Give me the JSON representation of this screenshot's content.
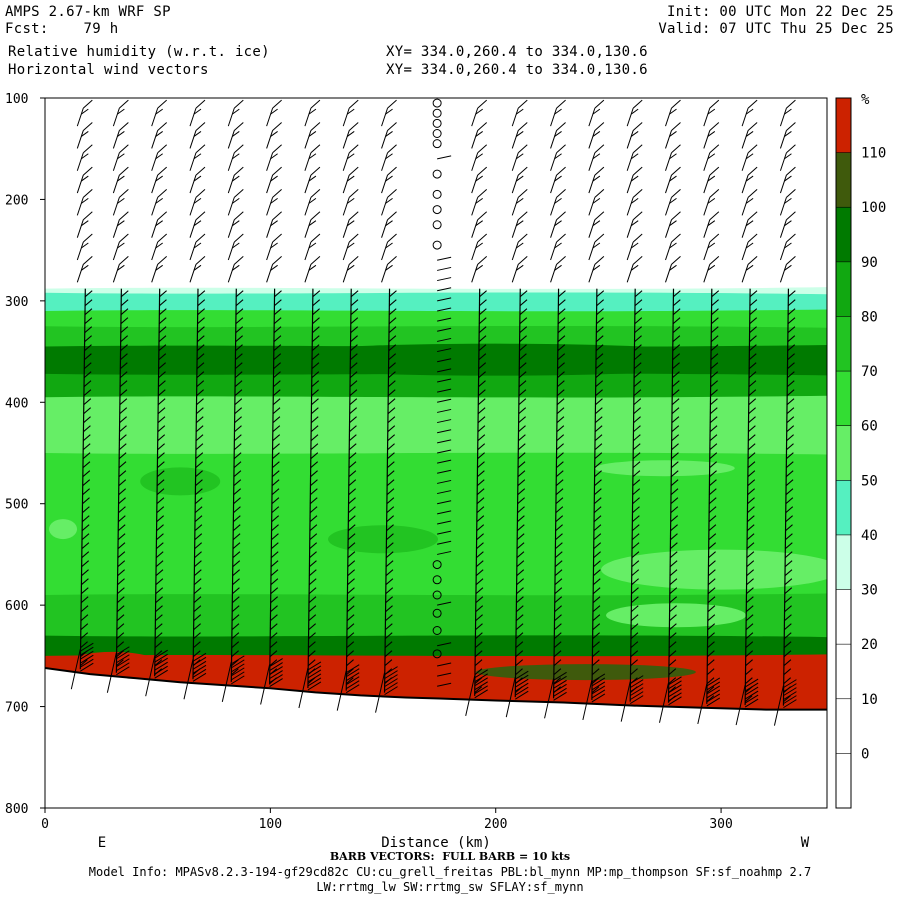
{
  "header": {
    "model": "AMPS 2.67-km WRF SP",
    "fcst": "Fcst:    79 h",
    "field1": "Relative humidity (w.r.t. ice)",
    "field2": "Horizontal wind vectors",
    "xy1": "XY= 334.0,260.4 to 334.0,130.6",
    "xy2": "XY= 334.0,260.4 to 334.0,130.6",
    "init": "Init: 00 UTC Mon 22 Dec 25",
    "valid": "Valid: 07 UTC Thu 25 Dec 25"
  },
  "footer": {
    "barb_note": "BARB VECTORS:  FULL BARB = 10 kts",
    "model_info": "Model Info: MPASv8.2.3-194-gf29cd82c CU:cu_grell_freitas PBL:bl_mynn MP:mp_thompson SF:sf_noahmp 2.7",
    "model_info2": "LW:rrtmg_lw SW:rrtmg_sw SFLAY:sf_mynn"
  },
  "chart_data": {
    "type": "heatmap",
    "title": "Relative humidity (w.r.t. ice)",
    "xlabel": "Distance (km)",
    "ylabel": "",
    "x_range": [
      0,
      347
    ],
    "y_range": [
      100,
      800
    ],
    "y_axis_inverted": true,
    "x_ticks": [
      "0",
      "100",
      "200",
      "300"
    ],
    "y_ticks": [
      "100",
      "200",
      "300",
      "400",
      "500",
      "600",
      "700",
      "800"
    ],
    "x_end_labels": {
      "left": "E",
      "right": "W"
    },
    "colorbar": {
      "unit": "%",
      "levels": [
        0,
        10,
        20,
        30,
        40,
        50,
        60,
        70,
        80,
        90,
        100,
        110
      ],
      "level_labels": [
        "0",
        "10",
        "20",
        "30",
        "40",
        "50",
        "60",
        "70",
        "80",
        "90",
        "100",
        "110"
      ],
      "colors": [
        "#ffffff",
        "#ffffff",
        "#ffffff",
        "#ffffff",
        "#ccffe8",
        "#55f0c0",
        "#66ee66",
        "#33dd33",
        "#22c422",
        "#11a811",
        "#007a00",
        "#3f5a0c",
        "#cc2200"
      ]
    },
    "terrain_pressure": [
      [
        0,
        662
      ],
      [
        20,
        668
      ],
      [
        40,
        672
      ],
      [
        60,
        676
      ],
      [
        80,
        679
      ],
      [
        100,
        682
      ],
      [
        120,
        686
      ],
      [
        140,
        689
      ],
      [
        160,
        691
      ],
      [
        175,
        692
      ],
      [
        200,
        694
      ],
      [
        230,
        696
      ],
      [
        260,
        699
      ],
      [
        290,
        701
      ],
      [
        320,
        703
      ],
      [
        347,
        703
      ]
    ],
    "rh_layers_pressure": [
      {
        "level": 30,
        "top": 288
      },
      {
        "level": 40,
        "top": 292
      },
      {
        "level": 60,
        "top": 310
      },
      {
        "level": 70,
        "top": 325
      },
      {
        "level": 90,
        "top": 345
      },
      {
        "level": 80,
        "top": 372
      },
      {
        "level": 50,
        "top": 395
      },
      {
        "level": 60,
        "top": 450
      },
      {
        "level": 70,
        "top": 590
      },
      {
        "level": 90,
        "top": 630
      },
      {
        "level": 110,
        "top": 650
      }
    ],
    "barb_columns_km": [
      17,
      33,
      50,
      67,
      84,
      101,
      118,
      135,
      152,
      174,
      192,
      210,
      227,
      244,
      261,
      278,
      295,
      312,
      329
    ],
    "barb_note": "BARB VECTORS:  FULL BARB = 10 kts"
  }
}
